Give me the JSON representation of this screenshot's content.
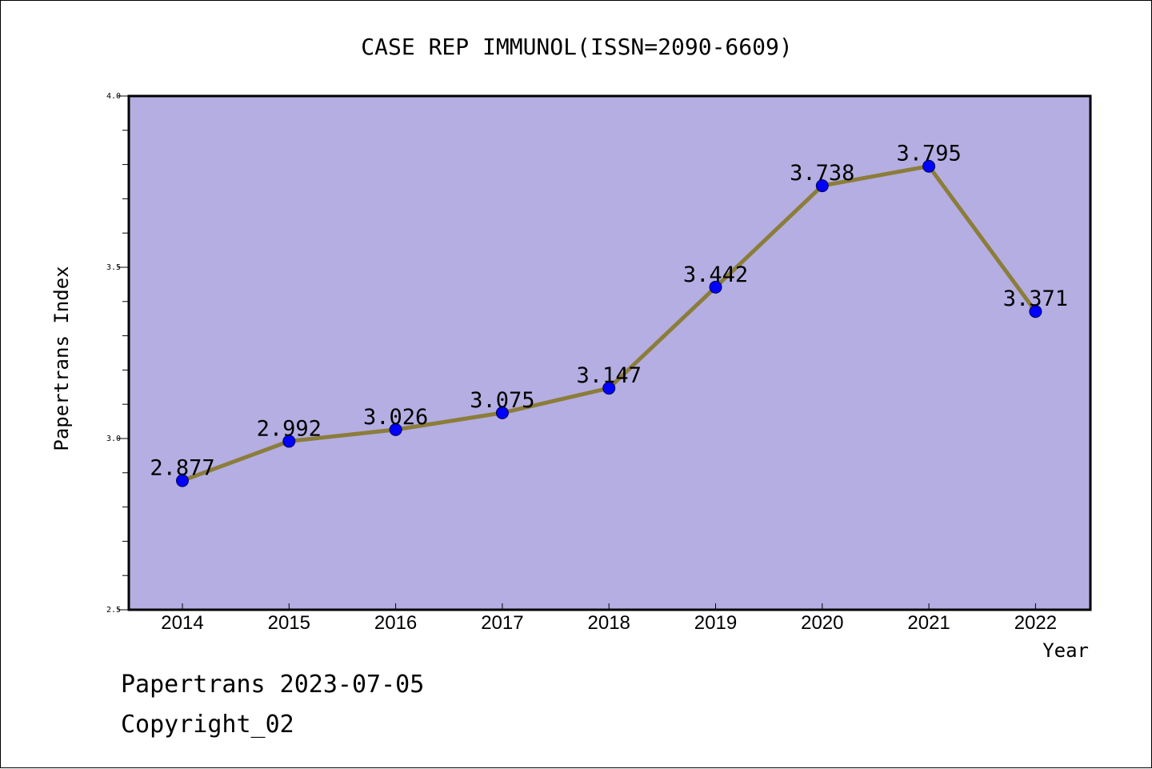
{
  "chart_data": {
    "type": "line",
    "title": "CASE REP IMMUNOL(ISSN=2090-6609)",
    "xlabel": "Year",
    "ylabel": "Papertrans Index",
    "categories": [
      "2014",
      "2015",
      "2016",
      "2017",
      "2018",
      "2019",
      "2020",
      "2021",
      "2022"
    ],
    "values": [
      2.877,
      2.992,
      3.026,
      3.075,
      3.147,
      3.442,
      3.738,
      3.795,
      3.371
    ],
    "data_labels": [
      "2.877",
      "2.992",
      "3.026",
      "3.075",
      "3.147",
      "3.442",
      "3.738",
      "3.795",
      "3.371"
    ],
    "ylim": [
      2.5,
      4.0
    ],
    "yticks": [
      "2.5",
      "3.0",
      "3.5",
      "4.0"
    ],
    "grid": false,
    "colors": {
      "plot_background": "#b4aee2",
      "line": "#8b7d3a",
      "marker": "#0000ff"
    }
  },
  "footer": {
    "line1": "Papertrans 2023-07-05",
    "line2": "Copyright_02"
  }
}
